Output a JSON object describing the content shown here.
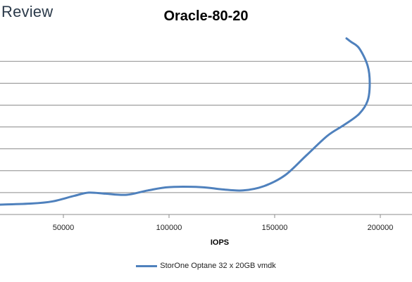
{
  "brand": "Review",
  "chart_data": {
    "type": "line",
    "title": "Oracle-80-20",
    "xlabel": "IOPS",
    "ylabel": "",
    "xlim": [
      20000,
      215000
    ],
    "ylim": [
      0,
      9
    ],
    "x_ticks": [
      50000,
      100000,
      150000,
      200000
    ],
    "x_tick_labels": [
      "50000",
      "100000",
      "150000",
      "200000"
    ],
    "y_gridlines": [
      1,
      2,
      3,
      4,
      5,
      6,
      7
    ],
    "grid": true,
    "legend_position": "bottom",
    "series": [
      {
        "name": "StorOne Optane 32 x 20GB vmdk",
        "color": "#4f81bd",
        "x": [
          20000,
          35000,
          45000,
          55000,
          62000,
          70000,
          80000,
          90000,
          100000,
          115000,
          125000,
          135000,
          145000,
          155000,
          165000,
          175000,
          183000,
          190000,
          194000,
          195000,
          194000,
          190000,
          186000,
          184000
        ],
        "y": [
          0.45,
          0.5,
          0.6,
          0.85,
          1.0,
          0.95,
          0.9,
          1.1,
          1.25,
          1.25,
          1.15,
          1.1,
          1.3,
          1.8,
          2.7,
          3.6,
          4.1,
          4.6,
          5.2,
          6.0,
          6.8,
          7.6,
          7.9,
          8.05
        ]
      }
    ]
  }
}
